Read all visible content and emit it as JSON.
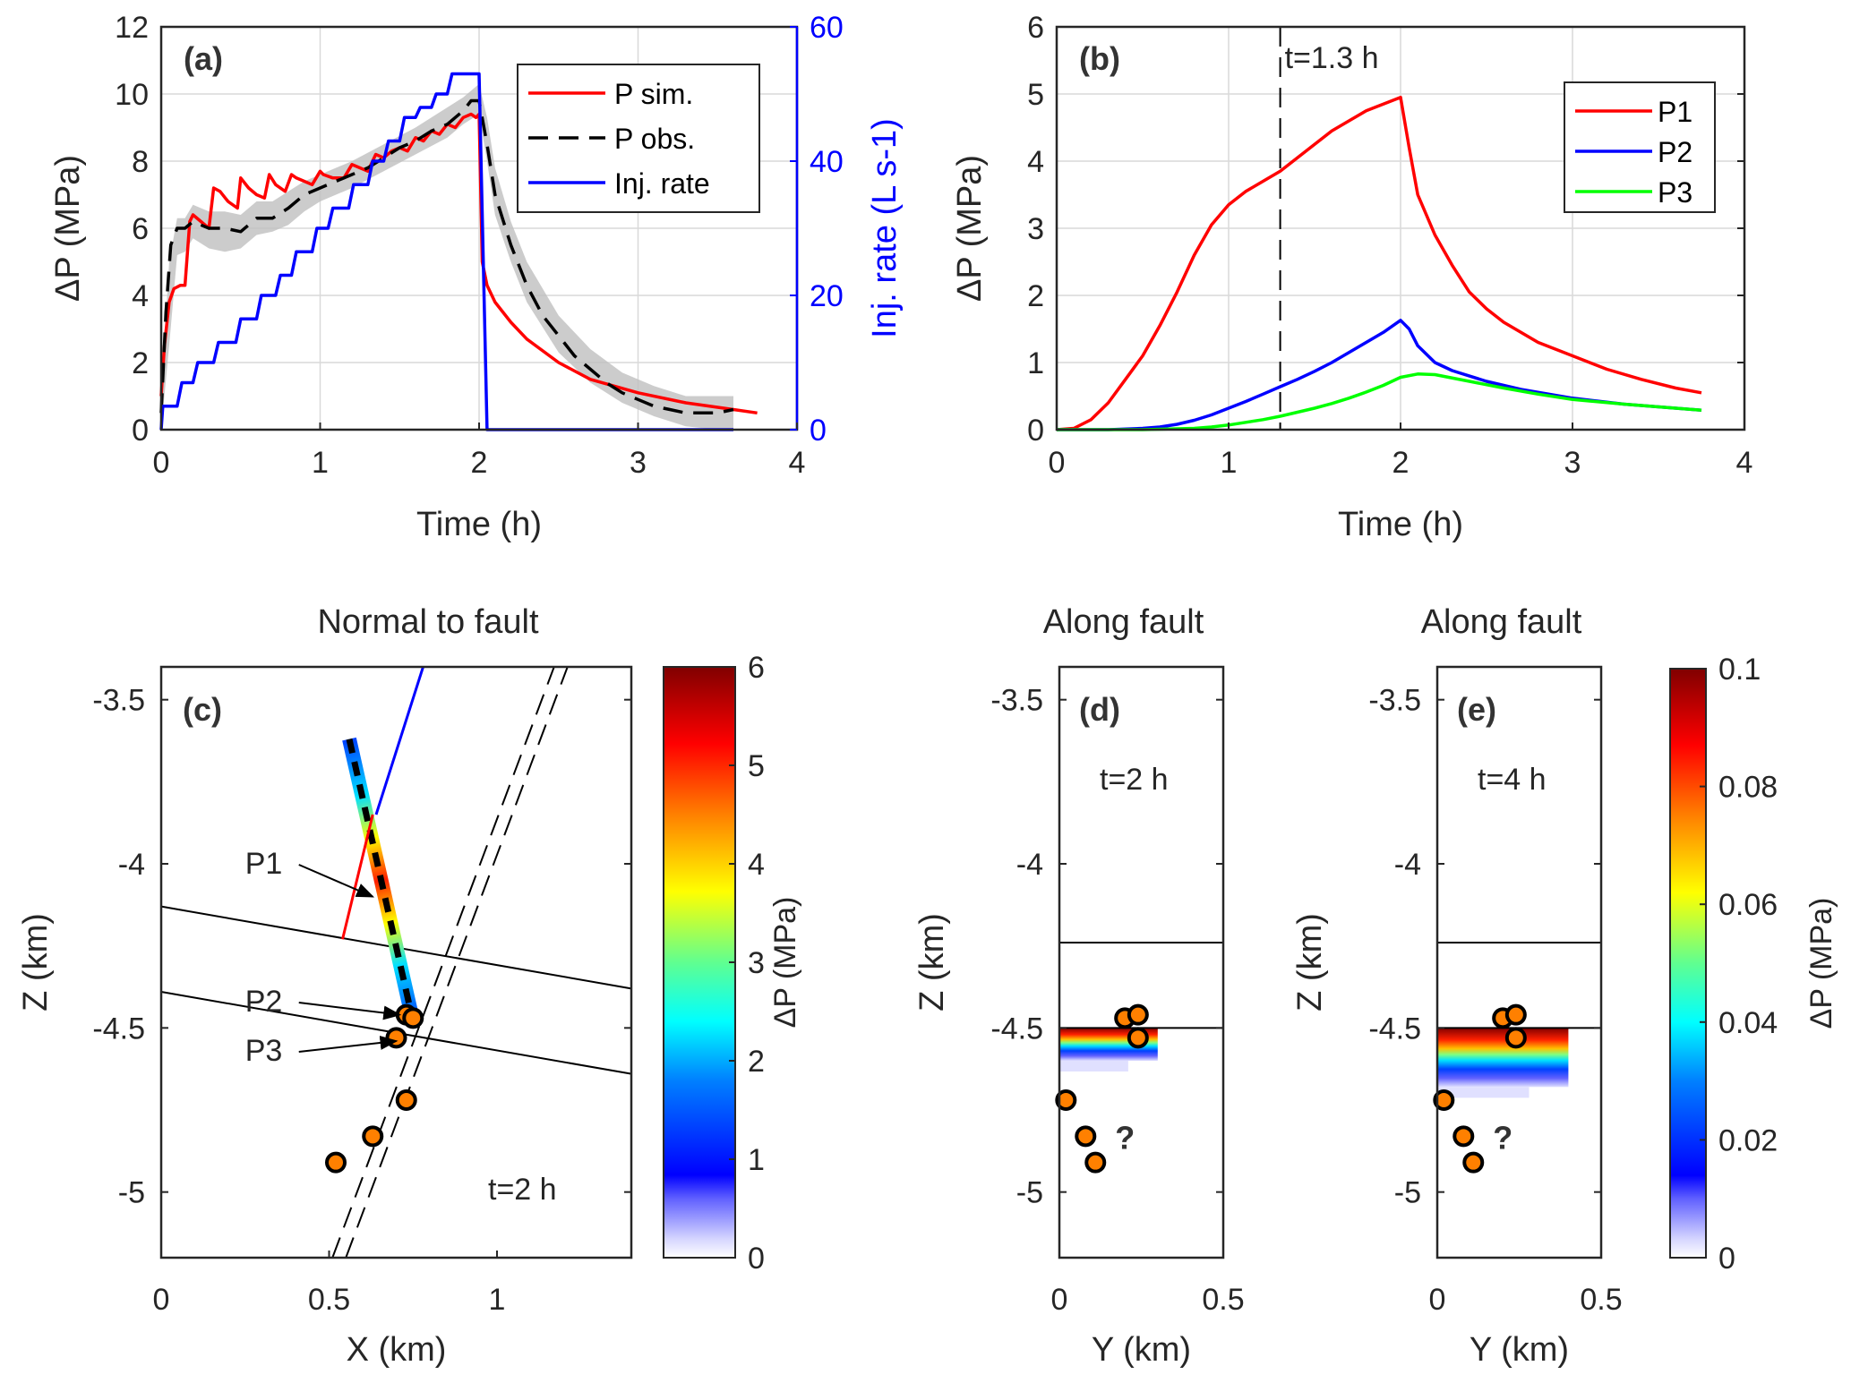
{
  "colors": {
    "red": "#ff0000",
    "blue": "#0000ff",
    "green": "#00ff00",
    "black": "#000000",
    "band": "#bfbfbf",
    "grid": "#d9d9d9",
    "axis": "#262626",
    "marker_fill": "#ff8000"
  },
  "chart_data": [
    {
      "id": "a",
      "type": "line",
      "panel_label": "(a)",
      "xlabel": "Time (h)",
      "ylabel": "ΔP (MPa)",
      "ylabel_right": "Inj. rate (L s-1)",
      "xlim": [
        0,
        4
      ],
      "ylim": [
        0,
        12
      ],
      "ylim_right": [
        0,
        60
      ],
      "xticks": [
        "0",
        "1",
        "2",
        "3",
        "4"
      ],
      "yticks": [
        "0",
        "2",
        "4",
        "6",
        "8",
        "10",
        "12"
      ],
      "yticks_right": [
        "0",
        "20",
        "40",
        "60"
      ],
      "grid": true,
      "legend_position": "top-right",
      "series": [
        {
          "name": "P sim.",
          "color": "#ff0000",
          "style": "solid",
          "axis": "left",
          "x": [
            0,
            0.02,
            0.05,
            0.08,
            0.12,
            0.15,
            0.18,
            0.2,
            0.25,
            0.3,
            0.33,
            0.37,
            0.42,
            0.48,
            0.5,
            0.55,
            0.6,
            0.65,
            0.68,
            0.72,
            0.78,
            0.82,
            0.85,
            0.9,
            0.95,
            1.0,
            1.02,
            1.08,
            1.15,
            1.2,
            1.25,
            1.3,
            1.35,
            1.4,
            1.45,
            1.5,
            1.55,
            1.6,
            1.65,
            1.7,
            1.75,
            1.8,
            1.85,
            1.9,
            1.95,
            1.98,
            2.0,
            2.02,
            2.05,
            2.1,
            2.2,
            2.3,
            2.5,
            2.7,
            3.0,
            3.3,
            3.6,
            3.75
          ],
          "y": [
            1.0,
            2.5,
            3.8,
            4.2,
            4.3,
            4.3,
            6.2,
            6.4,
            6.2,
            6.0,
            7.2,
            7.1,
            6.8,
            6.6,
            7.5,
            7.2,
            7.0,
            6.9,
            7.6,
            7.3,
            7.1,
            7.6,
            7.5,
            7.4,
            7.3,
            7.7,
            7.6,
            7.5,
            7.5,
            7.9,
            7.8,
            7.7,
            8.2,
            8.1,
            8.3,
            8.4,
            8.3,
            8.7,
            8.6,
            8.9,
            8.8,
            9.1,
            9.0,
            9.3,
            9.4,
            9.3,
            9.4,
            5.0,
            4.3,
            3.8,
            3.2,
            2.7,
            2.0,
            1.5,
            1.1,
            0.8,
            0.6,
            0.5
          ]
        },
        {
          "name": "P obs.",
          "color": "#000000",
          "style": "dashed",
          "axis": "left",
          "x": [
            0,
            0.03,
            0.06,
            0.1,
            0.15,
            0.2,
            0.25,
            0.3,
            0.4,
            0.5,
            0.6,
            0.7,
            0.8,
            0.9,
            1.0,
            1.1,
            1.2,
            1.3,
            1.4,
            1.5,
            1.6,
            1.7,
            1.8,
            1.9,
            1.95,
            2.0,
            2.05,
            2.1,
            2.2,
            2.3,
            2.4,
            2.5,
            2.6,
            2.7,
            2.8,
            2.9,
            3.0,
            3.1,
            3.2,
            3.3,
            3.4,
            3.5,
            3.6
          ],
          "y": [
            0.5,
            3.5,
            5.5,
            6.0,
            6.0,
            6.2,
            6.1,
            6.0,
            6.0,
            5.9,
            6.3,
            6.3,
            6.6,
            7.0,
            7.2,
            7.4,
            7.6,
            7.8,
            8.1,
            8.4,
            8.6,
            8.9,
            9.1,
            9.5,
            9.8,
            9.8,
            8.5,
            7.0,
            5.5,
            4.3,
            3.4,
            2.8,
            2.2,
            1.8,
            1.4,
            1.1,
            0.9,
            0.7,
            0.6,
            0.5,
            0.5,
            0.5,
            0.6
          ]
        },
        {
          "name": "Inj. rate",
          "color": "#0000ff",
          "style": "solid",
          "axis": "right",
          "x": [
            0,
            0.01,
            0.1,
            0.13,
            0.2,
            0.23,
            0.33,
            0.36,
            0.47,
            0.5,
            0.6,
            0.63,
            0.72,
            0.75,
            0.82,
            0.85,
            0.95,
            0.98,
            1.05,
            1.08,
            1.18,
            1.21,
            1.3,
            1.33,
            1.4,
            1.43,
            1.5,
            1.53,
            1.6,
            1.63,
            1.7,
            1.73,
            1.8,
            1.83,
            1.9,
            1.93,
            2.0,
            2.05,
            3.6
          ],
          "y": [
            0,
            3.5,
            3.5,
            7,
            7,
            10,
            10,
            13,
            13,
            16.5,
            16.5,
            20,
            20,
            23,
            23,
            26.5,
            26.5,
            30,
            30,
            33,
            33,
            36.5,
            36.5,
            40,
            40,
            43,
            43,
            46.5,
            46.5,
            48,
            48,
            50,
            50,
            53,
            53,
            53,
            53,
            0,
            0
          ]
        }
      ],
      "band": {
        "name": "P obs. uncertainty",
        "x": [
          0,
          0.05,
          0.1,
          0.15,
          0.2,
          0.3,
          0.4,
          0.5,
          0.6,
          0.7,
          0.8,
          0.9,
          1.0,
          1.2,
          1.4,
          1.6,
          1.8,
          1.9,
          2.0,
          2.05,
          2.1,
          2.2,
          2.3,
          2.5,
          2.7,
          2.9,
          3.1,
          3.3,
          3.5,
          3.6
        ],
        "upper": [
          1.0,
          5.0,
          6.3,
          6.3,
          6.7,
          6.5,
          6.5,
          6.4,
          6.8,
          6.8,
          7.1,
          7.4,
          7.6,
          8.0,
          8.5,
          9.0,
          9.6,
          9.9,
          10.3,
          9.3,
          7.8,
          6.2,
          5.0,
          3.4,
          2.4,
          1.7,
          1.3,
          1.0,
          1.0,
          1.0
        ],
        "lower": [
          0.0,
          2.5,
          5.2,
          5.3,
          5.7,
          5.4,
          5.3,
          5.4,
          5.8,
          5.9,
          6.1,
          6.5,
          6.8,
          7.2,
          7.7,
          8.2,
          8.7,
          9.1,
          9.4,
          8.0,
          6.4,
          5.0,
          3.8,
          2.3,
          1.4,
          0.8,
          0.4,
          0.1,
          0.0,
          0.0
        ]
      }
    },
    {
      "id": "b",
      "type": "line",
      "panel_label": "(b)",
      "xlabel": "Time (h)",
      "ylabel": "ΔP (MPa)",
      "xlim": [
        0,
        4
      ],
      "ylim": [
        0,
        6
      ],
      "xticks": [
        "0",
        "1",
        "2",
        "3",
        "4"
      ],
      "yticks": [
        "0",
        "1",
        "2",
        "3",
        "4",
        "5",
        "6"
      ],
      "grid": true,
      "legend_position": "top-right",
      "vline": {
        "x": 1.3,
        "label": "t=1.3 h"
      },
      "series": [
        {
          "name": "P1",
          "color": "#ff0000",
          "x": [
            0,
            0.1,
            0.2,
            0.3,
            0.4,
            0.5,
            0.6,
            0.7,
            0.8,
            0.9,
            1.0,
            1.1,
            1.2,
            1.3,
            1.4,
            1.5,
            1.6,
            1.7,
            1.8,
            1.9,
            2.0,
            2.05,
            2.1,
            2.2,
            2.3,
            2.4,
            2.5,
            2.6,
            2.8,
            3.0,
            3.2,
            3.4,
            3.6,
            3.75
          ],
          "y": [
            0,
            0.02,
            0.15,
            0.4,
            0.75,
            1.1,
            1.55,
            2.05,
            2.6,
            3.05,
            3.35,
            3.55,
            3.7,
            3.85,
            4.05,
            4.25,
            4.45,
            4.6,
            4.75,
            4.85,
            4.95,
            4.2,
            3.5,
            2.9,
            2.45,
            2.05,
            1.8,
            1.6,
            1.3,
            1.1,
            0.9,
            0.75,
            0.62,
            0.55
          ]
        },
        {
          "name": "P2",
          "color": "#0000ff",
          "x": [
            0,
            0.3,
            0.5,
            0.6,
            0.7,
            0.8,
            0.9,
            1.0,
            1.1,
            1.2,
            1.3,
            1.4,
            1.5,
            1.6,
            1.7,
            1.8,
            1.9,
            2.0,
            2.05,
            2.1,
            2.2,
            2.3,
            2.5,
            2.7,
            3.0,
            3.3,
            3.6,
            3.75
          ],
          "y": [
            0,
            0.0,
            0.02,
            0.04,
            0.08,
            0.14,
            0.22,
            0.32,
            0.42,
            0.53,
            0.64,
            0.75,
            0.87,
            1.0,
            1.15,
            1.3,
            1.45,
            1.63,
            1.5,
            1.25,
            1.0,
            0.88,
            0.72,
            0.6,
            0.47,
            0.38,
            0.32,
            0.29
          ]
        },
        {
          "name": "P3",
          "color": "#00ff00",
          "x": [
            0,
            0.5,
            0.8,
            0.9,
            1.0,
            1.1,
            1.2,
            1.3,
            1.4,
            1.5,
            1.6,
            1.7,
            1.8,
            1.9,
            2.0,
            2.1,
            2.2,
            2.4,
            2.6,
            2.8,
            3.0,
            3.3,
            3.6,
            3.75
          ],
          "y": [
            0,
            0.0,
            0.02,
            0.04,
            0.07,
            0.11,
            0.15,
            0.2,
            0.26,
            0.32,
            0.39,
            0.47,
            0.56,
            0.66,
            0.78,
            0.83,
            0.82,
            0.72,
            0.62,
            0.53,
            0.45,
            0.38,
            0.32,
            0.29
          ]
        }
      ]
    },
    {
      "id": "c",
      "type": "heatmap",
      "title": "Normal to fault",
      "panel_label": "(c)",
      "annotation": "t=2 h",
      "xlabel": "X (km)",
      "ylabel": "Z (km)",
      "xlim": [
        0,
        1.4
      ],
      "ylim": [
        -5.2,
        -3.4
      ],
      "xticks": [
        "0",
        "0.5",
        "1"
      ],
      "yticks": [
        "-5",
        "-4.5",
        "-4",
        "-3.5"
      ],
      "colorbar": {
        "label": "ΔP (MPa)",
        "range": [
          0,
          6
        ],
        "ticks": [
          "0",
          "1",
          "2",
          "3",
          "4",
          "5",
          "6"
        ],
        "colormap": "jet"
      },
      "wellbore_colored": {
        "from": [
          0.56,
          -3.62
        ],
        "to": [
          0.75,
          -4.48
        ],
        "peak_value_MPa": 5.5
      },
      "blue_well": {
        "from": [
          0.64,
          -3.85
        ],
        "to": [
          0.78,
          -3.4
        ]
      },
      "red_well": {
        "from": [
          0.54,
          -4.23
        ],
        "to": [
          0.63,
          -3.85
        ]
      },
      "horizons": [
        {
          "from": [
            0,
            -4.13
          ],
          "to": [
            1.4,
            -4.38
          ]
        },
        {
          "from": [
            0,
            -4.39
          ],
          "to": [
            1.4,
            -4.64
          ]
        }
      ],
      "fault_dashed_pair": [
        {
          "from": [
            0.51,
            -5.2
          ],
          "to": [
            1.17,
            -3.4
          ]
        },
        {
          "from": [
            0.55,
            -5.2
          ],
          "to": [
            1.21,
            -3.4
          ]
        }
      ],
      "events": [
        {
          "x": 0.73,
          "z": -4.46
        },
        {
          "x": 0.75,
          "z": -4.47
        },
        {
          "x": 0.7,
          "z": -4.53
        },
        {
          "x": 0.73,
          "z": -4.72
        },
        {
          "x": 0.63,
          "z": -4.83
        },
        {
          "x": 0.52,
          "z": -4.91
        }
      ],
      "callouts": [
        {
          "label": "P1",
          "text_at": [
            0.25,
            -4.03
          ],
          "arrow_to": [
            0.63,
            -4.1
          ]
        },
        {
          "label": "P2",
          "text_at": [
            0.25,
            -4.45
          ],
          "arrow_to": [
            0.71,
            -4.46
          ]
        },
        {
          "label": "P3",
          "text_at": [
            0.25,
            -4.6
          ],
          "arrow_to": [
            0.7,
            -4.54
          ]
        }
      ]
    },
    {
      "id": "d",
      "type": "heatmap",
      "title": "Along fault",
      "panel_label": "(d)",
      "annotation": "t=2 h",
      "xlabel": "Y (km)",
      "ylabel": "Z (km)",
      "xlim": [
        0,
        0.5
      ],
      "ylim": [
        -5.2,
        -3.4
      ],
      "xticks": [
        "0",
        "0.5"
      ],
      "yticks": [
        "-5",
        "-4.5",
        "-4",
        "-3.5"
      ],
      "horizons_z": [
        -4.24,
        -4.5
      ],
      "plume": {
        "y_extent": 0.3,
        "z_top": -4.5,
        "z_bottom": -4.6,
        "max_value_MPa": 0.1
      },
      "events": [
        {
          "y": 0.2,
          "z": -4.47
        },
        {
          "y": 0.24,
          "z": -4.46
        },
        {
          "y": 0.24,
          "z": -4.53
        },
        {
          "y": 0.02,
          "z": -4.72
        },
        {
          "y": 0.08,
          "z": -4.83
        },
        {
          "y": 0.11,
          "z": -4.91
        }
      ],
      "question_mark": {
        "label": "?",
        "at": [
          0.2,
          -4.83
        ]
      }
    },
    {
      "id": "e",
      "type": "heatmap",
      "title": "Along fault",
      "panel_label": "(e)",
      "annotation": "t=4 h",
      "xlabel": "Y (km)",
      "ylabel": "Z (km)",
      "xlim": [
        0,
        0.5
      ],
      "ylim": [
        -5.2,
        -3.4
      ],
      "xticks": [
        "0",
        "0.5"
      ],
      "yticks": [
        "-5",
        "-4.5",
        "-4",
        "-3.5"
      ],
      "horizons_z": [
        -4.24,
        -4.5
      ],
      "plume": {
        "y_extent": 0.4,
        "z_top": -4.5,
        "z_bottom": -4.68,
        "max_value_MPa": 0.1
      },
      "colorbar": {
        "label": "ΔP (MPa)",
        "range": [
          0,
          0.1
        ],
        "ticks": [
          "0",
          "0.02",
          "0.04",
          "0.06",
          "0.08",
          "0.1"
        ],
        "colormap": "jet"
      },
      "events": [
        {
          "y": 0.2,
          "z": -4.47
        },
        {
          "y": 0.24,
          "z": -4.46
        },
        {
          "y": 0.24,
          "z": -4.53
        },
        {
          "y": 0.02,
          "z": -4.72
        },
        {
          "y": 0.08,
          "z": -4.83
        },
        {
          "y": 0.11,
          "z": -4.91
        }
      ],
      "question_mark": {
        "label": "?",
        "at": [
          0.2,
          -4.83
        ]
      }
    }
  ]
}
